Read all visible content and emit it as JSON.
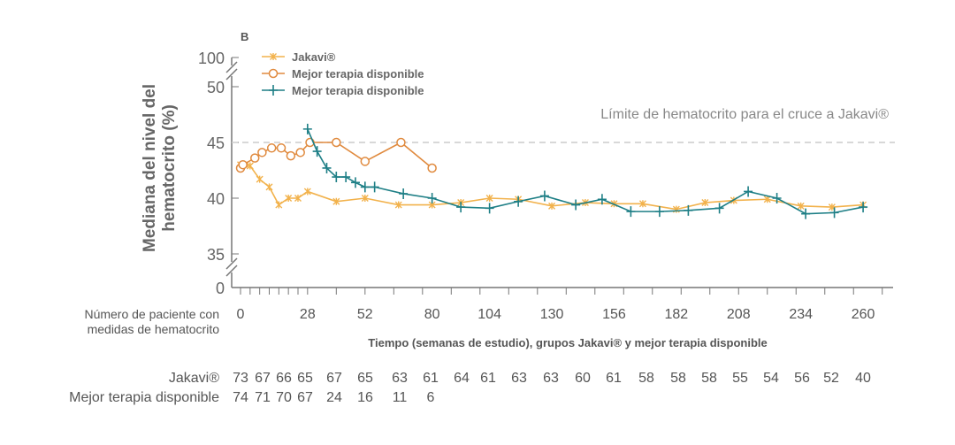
{
  "chart_data": {
    "type": "line",
    "panel_label": "B",
    "ylabel": "Mediana del nivel del hematocrito (%)",
    "xlabel": "Tiempo (semanas de estudio), grupos Jakavi® y mejor terapia disponible",
    "y_ticks": [
      "100",
      "50",
      "45",
      "40",
      "35",
      "0"
    ],
    "x_ticks": [
      "0",
      "28",
      "52",
      "80",
      "104",
      "130",
      "156",
      "182",
      "208",
      "234",
      "260"
    ],
    "xlim": [
      0,
      260
    ],
    "ylim": [
      35,
      50
    ],
    "y_breaks": true,
    "reference_line": {
      "value": 45,
      "label": "Límite de hematocrito para el cruce a Jakavi®",
      "color": "#cccccc"
    },
    "legend_position": "top-left",
    "series": [
      {
        "name": "Jakavi®",
        "color": "#f2b24c",
        "marker": "x",
        "x": [
          0,
          2,
          4,
          8,
          12,
          16,
          20,
          24,
          28,
          40,
          52,
          66,
          80,
          92,
          104,
          116,
          130,
          144,
          156,
          168,
          182,
          194,
          206,
          220,
          234,
          247,
          260
        ],
        "y": [
          43.0,
          43.0,
          42.9,
          41.7,
          41.0,
          39.4,
          40.0,
          40.0,
          40.6,
          39.7,
          40.0,
          39.4,
          39.4,
          39.6,
          40.0,
          39.9,
          39.3,
          39.6,
          39.5,
          39.5,
          39.0,
          39.6,
          39.8,
          39.9,
          39.3,
          39.2,
          39.4
        ]
      },
      {
        "name": "Mejor terapia disponible",
        "color": "#e08a3e",
        "marker": "o",
        "x": [
          0,
          1,
          6,
          9,
          13,
          17,
          21,
          25,
          29,
          40,
          52,
          67,
          80
        ],
        "y": [
          42.7,
          43.0,
          43.6,
          44.1,
          44.5,
          44.5,
          43.8,
          44.1,
          45.0,
          45.0,
          43.3,
          45.0,
          42.7
        ]
      },
      {
        "name": "Mejor terapia disponible",
        "color": "#1e7f86",
        "marker": "+",
        "x": [
          28,
          32,
          36,
          40,
          44,
          48,
          52,
          56,
          68,
          80,
          92,
          104,
          116,
          127,
          140,
          151,
          163,
          175,
          187,
          200,
          212,
          224,
          236,
          248,
          260
        ],
        "y": [
          46.2,
          44.2,
          42.7,
          41.9,
          41.9,
          41.4,
          41.0,
          41.0,
          40.4,
          40.0,
          39.2,
          39.1,
          39.7,
          40.2,
          39.4,
          39.9,
          38.8,
          38.8,
          38.9,
          39.1,
          40.6,
          40.0,
          38.6,
          38.7,
          39.2
        ]
      }
    ],
    "patients_at_risk": {
      "title": "Número de paciente con medidas de hematocrito",
      "rows": [
        {
          "label": "Jakavi®",
          "values": [
            "73",
            "67",
            "66",
            "65",
            "67",
            "65",
            "63",
            "61",
            "64",
            "61",
            "63",
            "63",
            "60",
            "61",
            "58",
            "58",
            "58",
            "55",
            "54",
            "56",
            "52",
            "40"
          ]
        },
        {
          "label": "Mejor terapia disponible",
          "values": [
            "74",
            "71",
            "70",
            "67",
            "24",
            "16",
            "11",
            "6"
          ]
        }
      ]
    }
  }
}
